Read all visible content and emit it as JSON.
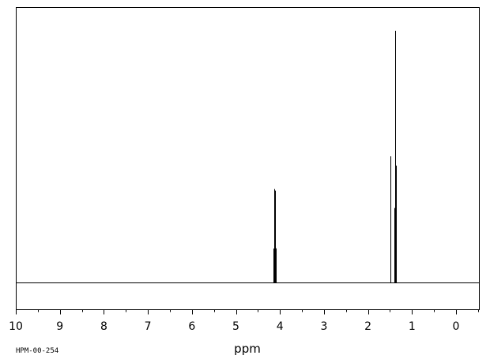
{
  "chart_data": {
    "type": "line",
    "xlabel": "ppm",
    "x_reversed": true,
    "xlim": [
      10,
      -0.5
    ],
    "ylim": [
      0,
      1
    ],
    "x_ticks": [
      10,
      9,
      8,
      7,
      6,
      5,
      4,
      3,
      2,
      1,
      0
    ],
    "minor_tick_step": 0.5,
    "grid": false,
    "peaks": [
      {
        "ppm": 4.152,
        "intensity": 0.136
      },
      {
        "ppm": 4.137,
        "intensity": 0.372
      },
      {
        "ppm": 4.117,
        "intensity": 0.366
      },
      {
        "ppm": 4.102,
        "intensity": 0.137
      },
      {
        "ppm": 1.49,
        "intensity": 0.502
      },
      {
        "ppm": 1.395,
        "intensity": 0.297
      },
      {
        "ppm": 1.38,
        "intensity": 1.0
      },
      {
        "ppm": 1.365,
        "intensity": 0.465
      }
    ]
  },
  "footer": {
    "sample_code": "HPM-00-254"
  },
  "style": {
    "line_color": "#000000",
    "background": "#ffffff"
  }
}
